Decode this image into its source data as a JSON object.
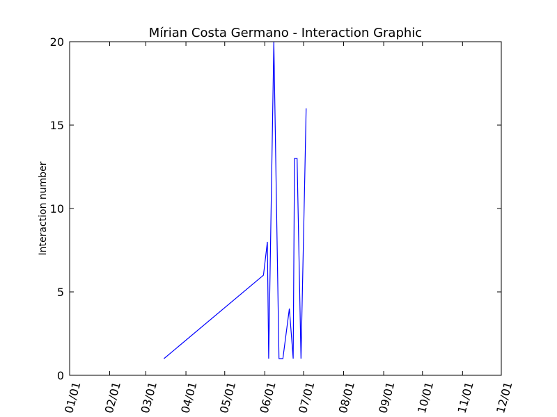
{
  "chart_data": {
    "type": "line",
    "title": "Mírian Costa Germano - Interaction Graphic",
    "xlabel": "",
    "ylabel": "Interaction number",
    "xlim": [
      "01/01",
      "12/01"
    ],
    "ylim": [
      0,
      20
    ],
    "x_tick_labels": [
      "01/01",
      "02/01",
      "03/01",
      "04/01",
      "05/01",
      "06/01",
      "07/01",
      "08/01",
      "09/01",
      "10/01",
      "11/01",
      "12/01"
    ],
    "y_tick_labels": [
      "0",
      "5",
      "10",
      "15",
      "20"
    ],
    "y_ticks": [
      0,
      5,
      10,
      15,
      20
    ],
    "grid": false,
    "line_color": "#0000ff",
    "series": [
      {
        "x": [
          "03/15",
          "05/31",
          "06/03",
          "06/04",
          "06/08",
          "06/12",
          "06/15",
          "06/20",
          "06/23",
          "06/24",
          "06/26",
          "06/29",
          "07/02",
          "07/03"
        ],
        "y": [
          1,
          6,
          8,
          1,
          20,
          1,
          1,
          4,
          1,
          13,
          13,
          1,
          12,
          16
        ]
      }
    ]
  }
}
